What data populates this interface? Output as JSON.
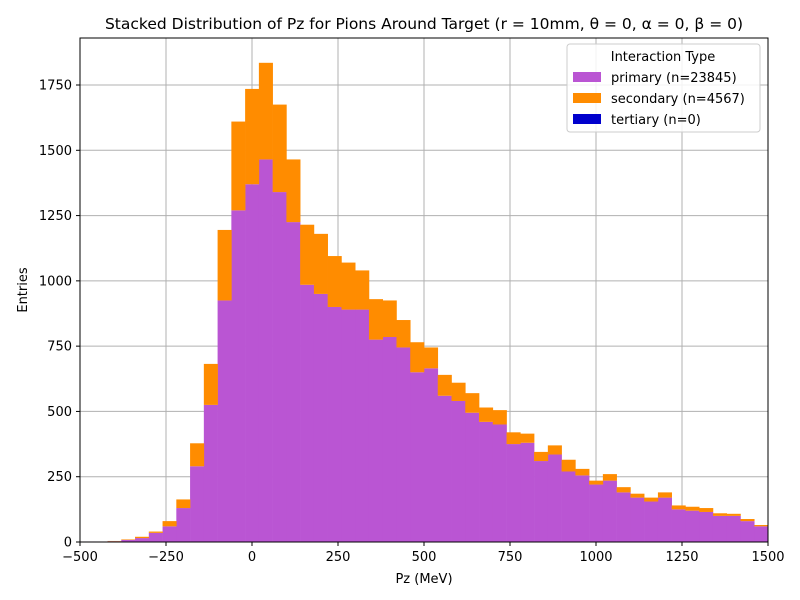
{
  "chart_data": {
    "type": "bar",
    "title": "Stacked Distribution of Pz for Pions Around Target (r = 10mm, θ = 0, α = 0, β = 0)",
    "xlabel": "Pz (MeV)",
    "ylabel": "Entries",
    "xlim": [
      -500,
      1500
    ],
    "ylim": [
      0,
      1930
    ],
    "xticks": [
      -500,
      -250,
      0,
      250,
      500,
      750,
      1000,
      1250,
      1500
    ],
    "xtick_labels": [
      "−500",
      "−250",
      "0",
      "250",
      "500",
      "750",
      "1000",
      "1250",
      "1500"
    ],
    "yticks": [
      0,
      250,
      500,
      750,
      1000,
      1250,
      1500,
      1750
    ],
    "grid": true,
    "stacked": true,
    "bin_width": 40,
    "bin_edges_start": -500,
    "legend": {
      "title": "Interaction Type",
      "placement": "top-right"
    },
    "series": [
      {
        "name": "primary (n=23845)",
        "color": "#ba55d3",
        "values": [
          2,
          2,
          3,
          8,
          15,
          35,
          60,
          130,
          290,
          525,
          925,
          1270,
          1370,
          1465,
          1340,
          1225,
          985,
          950,
          900,
          890,
          890,
          775,
          785,
          745,
          650,
          665,
          560,
          540,
          495,
          460,
          450,
          375,
          380,
          310,
          335,
          270,
          255,
          220,
          235,
          190,
          170,
          155,
          170,
          125,
          120,
          115,
          100,
          100,
          80,
          60
        ]
      },
      {
        "name": "secondary (n=4567)",
        "color": "#ff8c00",
        "values": [
          0,
          0,
          1,
          2,
          5,
          5,
          20,
          33,
          88,
          157,
          270,
          340,
          365,
          370,
          335,
          240,
          230,
          230,
          195,
          180,
          150,
          155,
          140,
          105,
          115,
          80,
          80,
          70,
          75,
          55,
          55,
          45,
          35,
          35,
          35,
          45,
          25,
          15,
          25,
          20,
          15,
          15,
          20,
          15,
          15,
          15,
          10,
          8,
          8,
          5
        ]
      },
      {
        "name": "tertiary (n=0)",
        "color": "#0000cd",
        "values": [
          0,
          0,
          0,
          0,
          0,
          0,
          0,
          0,
          0,
          0,
          0,
          0,
          0,
          0,
          0,
          0,
          0,
          0,
          0,
          0,
          0,
          0,
          0,
          0,
          0,
          0,
          0,
          0,
          0,
          0,
          0,
          0,
          0,
          0,
          0,
          0,
          0,
          0,
          0,
          0,
          0,
          0,
          0,
          0,
          0,
          0,
          0,
          0,
          0,
          0
        ]
      }
    ]
  }
}
